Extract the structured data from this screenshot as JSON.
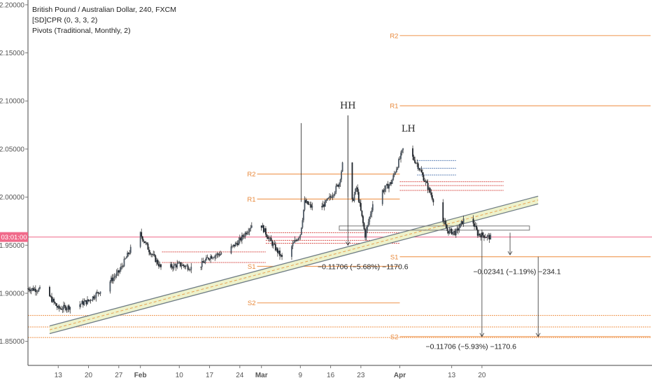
{
  "legend": {
    "title": "British Pound / Australian Dollar, 240, FXCM",
    "indicator1": "[SD]CPR (0, 3, 3, 2)",
    "indicator2": "Pivots (Traditional, Monthly, 2)"
  },
  "colors": {
    "up": "#4f5a66",
    "down": "#1e232a",
    "pivot": "#f0a060",
    "cpr_red": "#d9534f",
    "cpr_blue": "#5b7fb5",
    "price_line": "#f06a8a",
    "channel_fill": "#eef2cc",
    "channel_line": "#6f7d86",
    "mid_line": "#e8a050"
  },
  "chart_data": {
    "type": "candlestick",
    "symbol": "GBP/AUD",
    "timeframe": "240",
    "y_ticks": [
      "2.20000",
      "2.15000",
      "2.10000",
      "2.05000",
      "2.00000",
      "1.95000",
      "1.90000",
      "1.85000"
    ],
    "y_range": [
      1.825,
      2.205
    ],
    "x_ticks": [
      "13",
      "20",
      "27",
      "Feb",
      "10",
      "17",
      "24",
      "Mar",
      "9",
      "16",
      "23",
      "Apr",
      "13",
      "20"
    ],
    "current_price_label": "03:01:00",
    "current_price": 1.9585,
    "close_path": [
      [
        "Jan 6",
        1.905
      ],
      [
        "Jan 10",
        1.903
      ],
      [
        "Jan 13",
        1.884
      ],
      [
        "Jan 17",
        1.887
      ],
      [
        "Jan 20",
        1.892
      ],
      [
        "Jan 24",
        1.908
      ],
      [
        "Jan 27",
        1.922
      ],
      [
        "Jan 30",
        1.948
      ],
      [
        "Jan 31",
        1.97
      ],
      [
        "Feb 3",
        1.945
      ],
      [
        "Feb 6",
        1.925
      ],
      [
        "Feb 10",
        1.93
      ],
      [
        "Feb 14",
        1.925
      ],
      [
        "Feb 17",
        1.938
      ],
      [
        "Feb 21",
        1.943
      ],
      [
        "Feb 24",
        1.955
      ],
      [
        "Feb 26",
        1.967
      ],
      [
        "Feb 28",
        1.978
      ],
      [
        "Mar 2",
        1.955
      ],
      [
        "Mar 5",
        1.935
      ],
      [
        "Mar 9",
        1.962
      ],
      [
        "Mar 10",
        1.995
      ],
      [
        "Mar 13",
        1.985
      ],
      [
        "Mar 16",
        2.0
      ],
      [
        "Mar 18",
        2.015
      ],
      [
        "Mar 19",
        2.04
      ],
      [
        "Mar 20",
        1.98
      ],
      [
        "Mar 22",
        2.01
      ],
      [
        "Mar 24",
        1.96
      ],
      [
        "Mar 26",
        1.998
      ],
      [
        "Mar 30",
        2.015
      ],
      [
        "Apr 1",
        2.04
      ],
      [
        "Apr 2",
        2.053
      ],
      [
        "Apr 5",
        2.035
      ],
      [
        "Apr 8",
        2.005
      ],
      [
        "Apr 10",
        1.985
      ],
      [
        "Apr 12",
        1.965
      ],
      [
        "Apr 14",
        1.963
      ],
      [
        "Apr 16",
        1.978
      ],
      [
        "Apr 17",
        1.985
      ],
      [
        "Apr 19",
        1.962
      ],
      [
        "Apr 22",
        1.958
      ]
    ],
    "pivots_march": {
      "S2": 1.89,
      "S1": 1.928,
      "R1": 1.998,
      "R2": 2.024
    },
    "pivots_april": {
      "S2": 1.855,
      "S1": 1.938,
      "R1": 2.095,
      "R2": 2.168
    },
    "annotations": [
      {
        "text": "HH",
        "x": "Mar 20",
        "y": 2.092
      },
      {
        "text": "LH",
        "x": "Apr 3",
        "y": 2.068
      },
      {
        "text": "−0.11706 (−5.68%) −1170.6",
        "x": "Mar 13",
        "y": 1.925
      },
      {
        "text": "−0.02341 (−1.19%) −234.1",
        "x": "Apr 18",
        "y": 1.92
      },
      {
        "text": "−0.11706 (−5.93%) −1170.6",
        "x": "Apr 7",
        "y": 1.842
      }
    ]
  }
}
